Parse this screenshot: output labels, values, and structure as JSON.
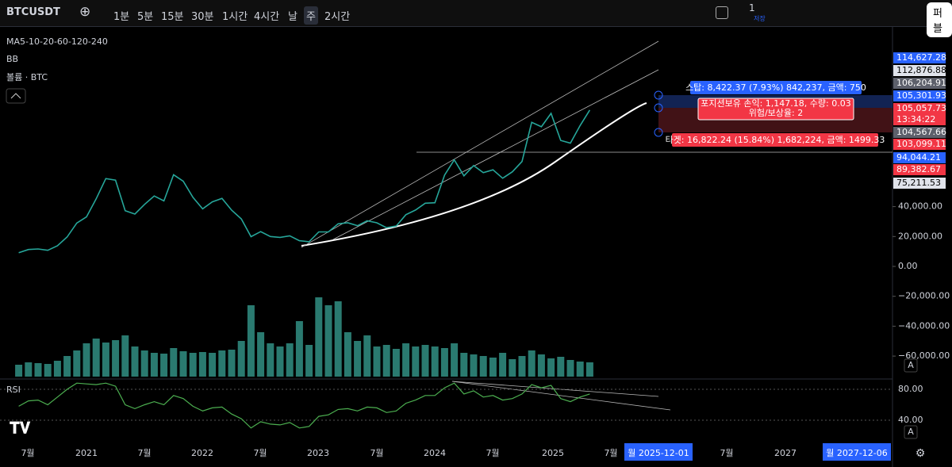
{
  "toolbar": {
    "symbol": "BTCUSDT",
    "intervals": [
      "1분",
      "5분",
      "15분",
      "30분",
      "1시간",
      "4시간",
      "날",
      "주",
      "2시간"
    ],
    "active_interval": "주",
    "layout_count": "1",
    "save": "저장",
    "publish": "퍼블"
  },
  "legend": {
    "ma": "MA5-10-20-60-120-240",
    "bb": "BB",
    "volume": "볼륨 · BTC",
    "rsi": "RSI"
  },
  "position": {
    "stop": "스탑: 8,422.37 (7.93%) 842,237, 금액: 750",
    "pnl": "포지션보유 손익: 1,147.18, 수량: 0.03",
    "ratio": "위험/보상율: 2",
    "target": "타겟: 16,822.24 (15.84%) 1,682,224, 금액: 1499.33"
  },
  "price": {
    "closes": [
      9100,
      11300,
      11650,
      10780,
      13800,
      19700,
      29000,
      33100,
      45200,
      58800,
      57700,
      37300,
      35000,
      41500,
      47100,
      43800,
      61300,
      57000,
      46200,
      38500,
      43200,
      45500,
      37600,
      31800,
      19900,
      23300,
      20000,
      19400,
      20500,
      17200,
      16500,
      23100,
      23100,
      28500,
      29200,
      27200,
      30500,
      29200,
      25900,
      27000,
      34600,
      37700,
      42300,
      42600,
      61100,
      71300,
      60600,
      67500,
      62700,
      64600,
      59000,
      63300,
      70200,
      96400,
      93400,
      102400,
      84300,
      82500,
      94200,
      104600
    ],
    "color": "#26a69a",
    "ticks": [
      {
        "value": 40000,
        "label": "40,000.00"
      },
      {
        "value": 20000,
        "label": "20,000.00"
      },
      {
        "value": 0,
        "label": "0.00"
      },
      {
        "value": -20000,
        "label": "−20,000.00"
      },
      {
        "value": -40000,
        "label": "−40,000.00"
      },
      {
        "value": -60000,
        "label": "−60,000.00"
      }
    ],
    "labels": [
      {
        "text": "114,627.28",
        "color": "#2962ff"
      },
      {
        "text": "112,876.88",
        "color": "#e0e3eb"
      },
      {
        "text": "106,204.91",
        "color": "#5d606b"
      },
      {
        "text": "105,301.93",
        "color": "#2962ff"
      },
      {
        "text": "105,057.73",
        "color": "#f23645"
      },
      {
        "text": "104,567.66",
        "color": "#5d606b"
      },
      {
        "text": "103,099.11",
        "color": "#f23645"
      },
      {
        "text": "94,044.21",
        "color": "#2962ff"
      },
      {
        "text": "89,382.67",
        "color": "#f23645"
      },
      {
        "text": "75,211.53",
        "color": "#e0e3eb"
      }
    ],
    "countdown": "13:34:22"
  },
  "volume": {
    "values": [
      150,
      180,
      170,
      160,
      200,
      260,
      330,
      420,
      480,
      430,
      460,
      520,
      380,
      330,
      300,
      290,
      360,
      320,
      300,
      310,
      300,
      330,
      340,
      450,
      900,
      560,
      420,
      380,
      420,
      700,
      400,
      1000,
      900,
      950,
      560,
      450,
      520,
      380,
      400,
      350,
      420,
      380,
      400,
      380,
      360,
      420,
      300,
      280,
      260,
      240,
      300,
      220,
      260,
      330,
      280,
      230,
      250,
      210,
      190,
      180
    ],
    "color": "#2a7a70"
  },
  "rsi": {
    "values": [
      58,
      65,
      66,
      60,
      70,
      80,
      88,
      87,
      86,
      88,
      84,
      60,
      55,
      60,
      64,
      60,
      72,
      68,
      58,
      52,
      56,
      57,
      48,
      42,
      30,
      38,
      35,
      34,
      37,
      30,
      32,
      45,
      47,
      54,
      55,
      52,
      57,
      56,
      50,
      52,
      62,
      66,
      72,
      72,
      82,
      88,
      74,
      78,
      70,
      72,
      66,
      68,
      74,
      86,
      82,
      85,
      68,
      64,
      70,
      74
    ],
    "color": "#4caf50",
    "ticks": [
      {
        "value": 80,
        "label": "80.00"
      },
      {
        "value": 40,
        "label": "40.00"
      }
    ]
  },
  "time_axis": {
    "labels": [
      "7월",
      "2021",
      "7월",
      "2022",
      "7월",
      "2023",
      "7월",
      "2024",
      "7월",
      "2025",
      "7월",
      "월 2025-12-01",
      "7월",
      "2027",
      "월 2027-12-06"
    ]
  },
  "scale_buttons": [
    "A",
    "A"
  ]
}
